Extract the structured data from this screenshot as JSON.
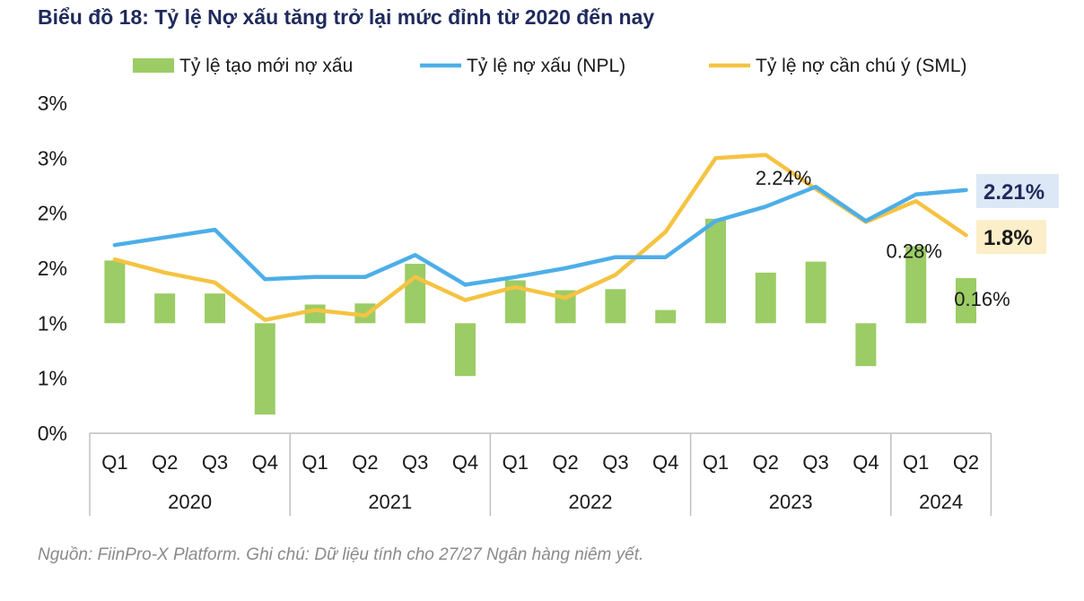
{
  "title": "Biểu đồ 18: Tỷ lệ Nợ xấu tăng trở lại mức đỉnh từ 2020 đến nay",
  "footnote": "Nguồn: FiinPro-X Platform. Ghi chú: Dữ liệu  tính cho 27/27 Ngân hàng niêm yết.",
  "colors": {
    "bar": "#9ccc65",
    "npl": "#4daee8",
    "sml": "#f5c342",
    "axis": "#bfbfbf",
    "text": "#1a1a1a",
    "title": "#1f2a5c"
  },
  "chart_data": {
    "type": "bar+line",
    "categories": [
      "Q1",
      "Q2",
      "Q3",
      "Q4",
      "Q1",
      "Q2",
      "Q3",
      "Q4",
      "Q1",
      "Q2",
      "Q3",
      "Q4",
      "Q1",
      "Q2",
      "Q3",
      "Q4",
      "Q1",
      "Q2"
    ],
    "groups": [
      {
        "label": "2020",
        "count": 4
      },
      {
        "label": "2021",
        "count": 4
      },
      {
        "label": "2022",
        "count": 4
      },
      {
        "label": "2023",
        "count": 4
      },
      {
        "label": "2024",
        "count": 2
      }
    ],
    "y_ticks": [
      {
        "value": 0,
        "label": "0%"
      },
      {
        "value": 0.5,
        "label": "1%"
      },
      {
        "value": 1.0,
        "label": "1%"
      },
      {
        "value": 1.5,
        "label": "2%"
      },
      {
        "value": 2.0,
        "label": "2%"
      },
      {
        "value": 2.5,
        "label": "3%"
      },
      {
        "value": 3.0,
        "label": "3%"
      }
    ],
    "ylim": [
      0,
      3.0
    ],
    "legend_position": "top",
    "series": [
      {
        "key": "bar",
        "name": "Tỷ lệ tạo mới nợ xấu",
        "type": "bar",
        "baseline": 1.0,
        "values": [
          1.57,
          1.27,
          1.27,
          0.17,
          1.17,
          1.18,
          1.54,
          0.52,
          1.39,
          1.3,
          1.31,
          1.12,
          1.95,
          1.46,
          1.56,
          0.61,
          1.7,
          1.41
        ]
      },
      {
        "key": "npl",
        "name": "Tỷ lệ nợ xấu (NPL)",
        "type": "line",
        "values": [
          1.71,
          1.78,
          1.85,
          1.4,
          1.42,
          1.42,
          1.62,
          1.35,
          1.42,
          1.5,
          1.6,
          1.6,
          1.93,
          2.06,
          2.24,
          1.93,
          2.17,
          2.21
        ]
      },
      {
        "key": "sml",
        "name": "Tỷ lệ nợ cần chú ý (SML)",
        "type": "line",
        "values": [
          1.58,
          1.46,
          1.37,
          1.03,
          1.12,
          1.07,
          1.42,
          1.21,
          1.33,
          1.23,
          1.44,
          1.83,
          2.5,
          2.53,
          2.22,
          1.92,
          2.11,
          1.8
        ]
      }
    ],
    "annotations": [
      {
        "series": "npl",
        "index": 14,
        "text": "2.24%"
      },
      {
        "series": "bar",
        "index": 16,
        "text": "0.28%"
      },
      {
        "series": "bar",
        "index": 17,
        "text": "0.16%"
      }
    ],
    "end_labels": [
      {
        "series": "npl",
        "text": "2.21%",
        "bg": "#dce8f5",
        "color": "#1f2a5c"
      },
      {
        "series": "sml",
        "text": "1.8%",
        "bg": "#fbeec8",
        "color": "#1a1a1a"
      }
    ]
  }
}
